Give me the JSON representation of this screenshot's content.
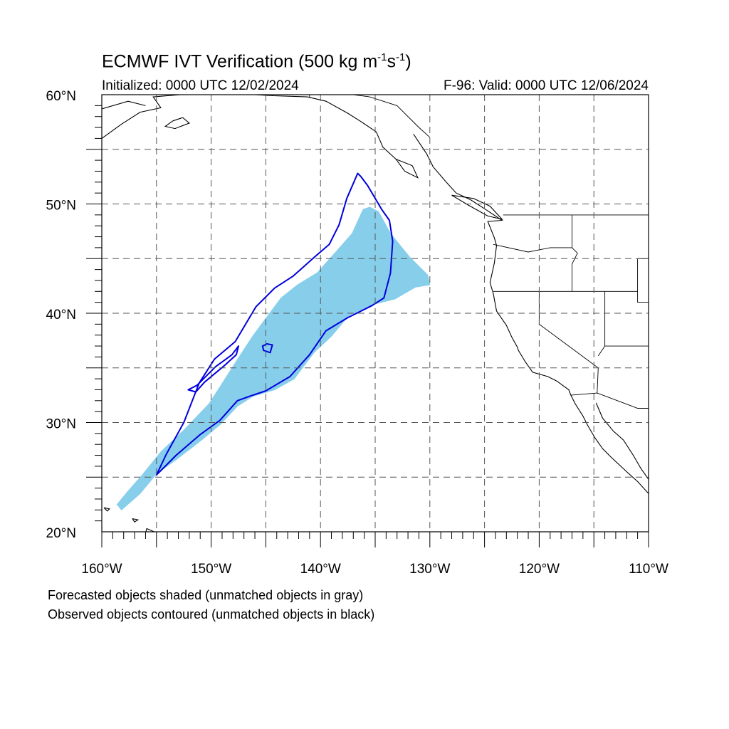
{
  "title_main": "ECMWF IVT Verification (500 kg m",
  "title_sup1": "-1",
  "title_mid": "s",
  "title_sup2": "-1",
  "title_end": ")",
  "init_text": "Initialized: 0000 UTC 12/02/2024",
  "valid_text": "F-96: Valid: 0000 UTC 12/06/2024",
  "caption_forecast": "Forecasted objects shaded (unmatched objects in gray)",
  "caption_observed": "Observed objects contoured (unmatched objects in black)",
  "lat_labels": [
    {
      "value": 60,
      "text": "60°N"
    },
    {
      "value": 50,
      "text": "50°N"
    },
    {
      "value": 40,
      "text": "40°N"
    },
    {
      "value": 30,
      "text": "30°N"
    },
    {
      "value": 20,
      "text": "20°N"
    }
  ],
  "lon_labels": [
    {
      "value": -160,
      "text": "160°W"
    },
    {
      "value": -150,
      "text": "150°W"
    },
    {
      "value": -140,
      "text": "140°W"
    },
    {
      "value": -130,
      "text": "130°W"
    },
    {
      "value": -120,
      "text": "120°W"
    },
    {
      "value": -110,
      "text": "110°W"
    }
  ],
  "map": {
    "lon_range": [
      -160,
      -110
    ],
    "lat_range": [
      20,
      60
    ],
    "grid_lon_step": 5,
    "grid_lat_step": 5,
    "forecast_color": "#87CEEB",
    "observed_color": "#0000DD",
    "forecast_object": [
      [
        -158.2,
        22.0
      ],
      [
        -156.5,
        23.5
      ],
      [
        -155.0,
        25.3
      ],
      [
        -153.2,
        26.6
      ],
      [
        -151.0,
        28.3
      ],
      [
        -149.2,
        29.8
      ],
      [
        -147.6,
        31.5
      ],
      [
        -146.2,
        32.4
      ],
      [
        -144.2,
        33.0
      ],
      [
        -142.4,
        34.0
      ],
      [
        -140.6,
        36.4
      ],
      [
        -139.0,
        37.9
      ],
      [
        -137.4,
        39.8
      ],
      [
        -135.2,
        40.8
      ],
      [
        -133.2,
        41.3
      ],
      [
        -131.3,
        42.4
      ],
      [
        -130.0,
        42.6
      ],
      [
        -130.2,
        43.5
      ],
      [
        -131.9,
        45.2
      ],
      [
        -133.6,
        47.3
      ],
      [
        -134.7,
        49.3
      ],
      [
        -135.5,
        49.7
      ],
      [
        -136.1,
        49.5
      ],
      [
        -137.1,
        47.3
      ],
      [
        -138.6,
        45.6
      ],
      [
        -140.3,
        43.7
      ],
      [
        -142.1,
        42.6
      ],
      [
        -143.6,
        41.4
      ],
      [
        -144.8,
        39.8
      ],
      [
        -146.2,
        37.9
      ],
      [
        -147.7,
        35.6
      ],
      [
        -149.1,
        33.4
      ],
      [
        -150.2,
        31.7
      ],
      [
        -152.4,
        29.4
      ],
      [
        -154.6,
        27.3
      ],
      [
        -156.3,
        25.2
      ],
      [
        -157.7,
        23.6
      ],
      [
        -158.6,
        22.5
      ]
    ],
    "observed_object": [
      [
        -155.0,
        25.2
      ],
      [
        -153.2,
        27.0
      ],
      [
        -151.0,
        28.9
      ],
      [
        -149.2,
        30.2
      ],
      [
        -147.6,
        32.0
      ],
      [
        -146.5,
        32.4
      ],
      [
        -145.0,
        32.9
      ],
      [
        -142.8,
        34.2
      ],
      [
        -141.0,
        36.2
      ],
      [
        -139.5,
        38.4
      ],
      [
        -137.5,
        39.6
      ],
      [
        -135.3,
        40.7
      ],
      [
        -134.2,
        41.4
      ],
      [
        -133.6,
        43.7
      ],
      [
        -133.4,
        46.6
      ],
      [
        -133.7,
        48.5
      ],
      [
        -134.4,
        49.5
      ],
      [
        -135.7,
        51.7
      ],
      [
        -136.3,
        52.5
      ],
      [
        -136.6,
        52.8
      ],
      [
        -137.6,
        50.5
      ],
      [
        -138.3,
        48.1
      ],
      [
        -139.2,
        46.3
      ],
      [
        -140.6,
        45.1
      ],
      [
        -142.5,
        43.4
      ],
      [
        -144.2,
        42.3
      ],
      [
        -145.9,
        40.6
      ],
      [
        -147.8,
        37.4
      ],
      [
        -149.7,
        35.8
      ],
      [
        -151.1,
        33.6
      ],
      [
        -152.5,
        30.0
      ],
      [
        -154.1,
        27.1
      ]
    ],
    "observed_hole": [
      [
        -151.3,
        33.4
      ],
      [
        -149.6,
        35.1
      ],
      [
        -148.1,
        36.2
      ],
      [
        -147.5,
        37.0
      ],
      [
        -147.7,
        36.2
      ],
      [
        -148.8,
        35.2
      ],
      [
        -150.6,
        33.7
      ],
      [
        -151.4,
        32.8
      ],
      [
        -152.1,
        33.0
      ]
    ],
    "observed_small": [
      [
        -145.2,
        36.6
      ],
      [
        -144.6,
        36.4
      ],
      [
        -144.4,
        37.1
      ],
      [
        -144.9,
        37.2
      ],
      [
        -145.3,
        37.0
      ]
    ],
    "coastlines": [
      [
        [
          -160,
          56.0
        ],
        [
          -158.2,
          57.3
        ],
        [
          -156.5,
          58.4
        ],
        [
          -154.6,
          58.8
        ],
        [
          -155.3,
          59.8
        ],
        [
          -152.8,
          60.0
        ]
      ],
      [
        [
          -160,
          58.7
        ],
        [
          -157.6,
          59.4
        ],
        [
          -156.0,
          59.0
        ]
      ],
      [
        [
          -153.5,
          57.6
        ],
        [
          -152.6,
          57.9
        ],
        [
          -152.0,
          57.4
        ],
        [
          -153.3,
          56.9
        ],
        [
          -154.2,
          57.1
        ],
        [
          -153.5,
          57.6
        ]
      ],
      [
        [
          -146.0,
          60.0
        ],
        [
          -144.3,
          59.9
        ],
        [
          -141.2,
          59.8
        ],
        [
          -139.5,
          59.4
        ],
        [
          -137.5,
          58.3
        ],
        [
          -136.4,
          57.6
        ],
        [
          -134.9,
          56.6
        ],
        [
          -134.3,
          55.2
        ],
        [
          -133.1,
          54.1
        ],
        [
          -132.3,
          53.0
        ],
        [
          -131.1,
          52.4
        ],
        [
          -131.6,
          53.5
        ],
        [
          -132.6,
          53.9
        ],
        [
          -133.1,
          54.1
        ]
      ],
      [
        [
          -131.5,
          56.4
        ],
        [
          -130.3,
          54.6
        ],
        [
          -129.7,
          53.4
        ],
        [
          -128.5,
          52.0
        ],
        [
          -127.6,
          51.0
        ],
        [
          -126.3,
          50.4
        ],
        [
          -124.9,
          49.5
        ],
        [
          -123.4,
          48.5
        ],
        [
          -124.7,
          48.4
        ],
        [
          -124.1,
          46.9
        ],
        [
          -123.9,
          46.2
        ],
        [
          -124.1,
          44.6
        ],
        [
          -124.5,
          42.8
        ],
        [
          -124.2,
          41.8
        ],
        [
          -123.9,
          40.2
        ],
        [
          -123.0,
          38.9
        ],
        [
          -122.5,
          37.8
        ],
        [
          -122.0,
          36.9
        ],
        [
          -121.9,
          36.6
        ],
        [
          -121.3,
          35.6
        ],
        [
          -120.6,
          34.6
        ],
        [
          -119.2,
          34.2
        ],
        [
          -118.4,
          33.8
        ],
        [
          -117.3,
          33.0
        ],
        [
          -117.1,
          32.5
        ],
        [
          -116.7,
          31.7
        ],
        [
          -116.0,
          30.6
        ],
        [
          -115.6,
          29.8
        ],
        [
          -114.9,
          28.6
        ],
        [
          -114.2,
          27.6
        ],
        [
          -113.4,
          26.8
        ],
        [
          -112.0,
          25.5
        ],
        [
          -111.0,
          24.6
        ],
        [
          -110,
          23.5
        ]
      ],
      [
        [
          -126.0,
          50.5
        ],
        [
          -124.5,
          49.8
        ],
        [
          -123.4,
          48.6
        ],
        [
          -124.7,
          48.9
        ],
        [
          -126.5,
          49.9
        ],
        [
          -128.0,
          50.8
        ],
        [
          -126.0,
          50.5
        ]
      ],
      [
        [
          -114.8,
          31.8
        ],
        [
          -114.2,
          30.4
        ],
        [
          -113.2,
          29.2
        ],
        [
          -112.3,
          28.4
        ],
        [
          -111.4,
          27.0
        ],
        [
          -110.7,
          25.8
        ],
        [
          -110,
          24.8
        ]
      ],
      [
        [
          -155.9,
          20.3
        ],
        [
          -155.0,
          19.9
        ],
        [
          -155.5,
          19.2
        ],
        [
          -156.0,
          19.8
        ],
        [
          -155.9,
          20.3
        ]
      ],
      [
        [
          -159.8,
          22.2
        ],
        [
          -159.3,
          22.1
        ],
        [
          -159.5,
          21.9
        ],
        [
          -159.8,
          22.2
        ]
      ],
      [
        [
          -157.2,
          21.2
        ],
        [
          -156.7,
          21.1
        ],
        [
          -157.0,
          20.9
        ],
        [
          -157.2,
          21.2
        ]
      ]
    ],
    "borders": [
      [
        [
          -141.0,
          60.0
        ],
        [
          -141.0,
          59.7
        ]
      ],
      [
        [
          -130.0,
          56.1
        ],
        [
          -131.0,
          57.0
        ],
        [
          -133.0,
          59.0
        ],
        [
          -135.5,
          59.8
        ],
        [
          -137.0,
          60.0
        ]
      ],
      [
        [
          -123.3,
          49.0
        ],
        [
          -110,
          49.0
        ]
      ],
      [
        [
          -124.2,
          46.3
        ],
        [
          -121.0,
          45.6
        ],
        [
          -119.0,
          46.0
        ],
        [
          -117.0,
          46.0
        ]
      ],
      [
        [
          -117.0,
          49.0
        ],
        [
          -117.0,
          46.0
        ],
        [
          -116.5,
          45.5
        ],
        [
          -117.0,
          44.5
        ],
        [
          -117.0,
          42.0
        ]
      ],
      [
        [
          -124.2,
          42.0
        ],
        [
          -111.0,
          42.0
        ]
      ],
      [
        [
          -120.0,
          42.0
        ],
        [
          -120.0,
          39.0
        ],
        [
          -114.6,
          35.0
        ],
        [
          -114.7,
          32.7
        ]
      ],
      [
        [
          -114.0,
          42.0
        ],
        [
          -114.0,
          37.0
        ],
        [
          -114.6,
          36.1
        ]
      ],
      [
        [
          -114.0,
          37.0
        ],
        [
          -110,
          37.0
        ]
      ],
      [
        [
          -111.0,
          45.0
        ],
        [
          -110,
          45.0
        ]
      ],
      [
        [
          -111.0,
          45.0
        ],
        [
          -111.0,
          41.0
        ],
        [
          -110,
          41.0
        ]
      ],
      [
        [
          -117.1,
          32.5
        ],
        [
          -114.7,
          32.7
        ],
        [
          -111.0,
          31.3
        ],
        [
          -110,
          31.3
        ]
      ]
    ]
  }
}
